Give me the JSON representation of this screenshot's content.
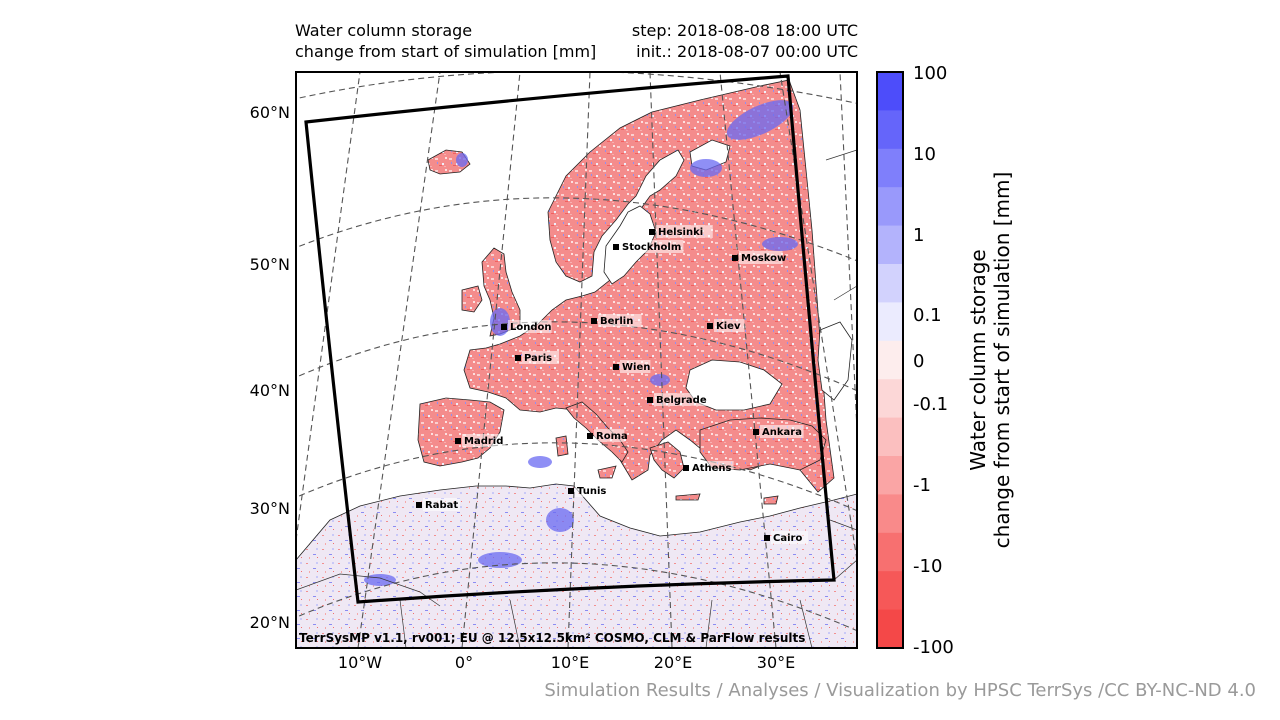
{
  "header": {
    "title_line1": "Water column storage",
    "title_line2": "change from start of simulation [mm]",
    "step_line": "step: 2018-08-08 18:00 UTC",
    "init_line": "init.: 2018-08-07 00:00 UTC"
  },
  "map": {
    "lat_labels": [
      "60°N",
      "50°N",
      "40°N",
      "30°N",
      "20°N"
    ],
    "lon_labels": [
      "10°W",
      "0°",
      "10°E",
      "20°E",
      "30°E"
    ],
    "model_info": "TerrSysMP v1.1, rv001; EU @ 12.5x12.5km² COSMO, CLM & ParFlow results",
    "cities": [
      {
        "name": "Helsinki"
      },
      {
        "name": "Stockholm"
      },
      {
        "name": "Moskow"
      },
      {
        "name": "London"
      },
      {
        "name": "Berlin"
      },
      {
        "name": "Kiev"
      },
      {
        "name": "Paris"
      },
      {
        "name": "Wien"
      },
      {
        "name": "Belgrade"
      },
      {
        "name": "Madrid"
      },
      {
        "name": "Roma"
      },
      {
        "name": "Ankara"
      },
      {
        "name": "Athens"
      },
      {
        "name": "Tunis"
      },
      {
        "name": "Rabat"
      },
      {
        "name": "Cairo"
      }
    ]
  },
  "colorbar": {
    "title_line1": "Water column storage",
    "title_line2": "change from start of simulation [mm]",
    "tick_labels": [
      "100",
      "10",
      "1",
      "0.1",
      "0",
      "-0.1",
      "-1",
      "-10",
      "-100"
    ],
    "colors_top_to_bottom": [
      "#4d4dfa",
      "#6565fa",
      "#7f7ffb",
      "#9999fb",
      "#b3b3fc",
      "#d2d2fd",
      "#ebebfe",
      "#fdeded",
      "#fcd7d7",
      "#fbbfbf",
      "#faa5a5",
      "#f98a8a",
      "#f77070",
      "#f65858",
      "#f44848"
    ]
  },
  "footer": {
    "credit": "Simulation Results / Analyses / Visualization by HPSC TerrSys /CC BY-NC-ND 4.0"
  },
  "colors": {
    "land_dry": "#f48a8a",
    "land_wet": "#6a6af2",
    "desert": "#efeaf6",
    "domain_border": "#000000",
    "graticule": "#555555"
  }
}
